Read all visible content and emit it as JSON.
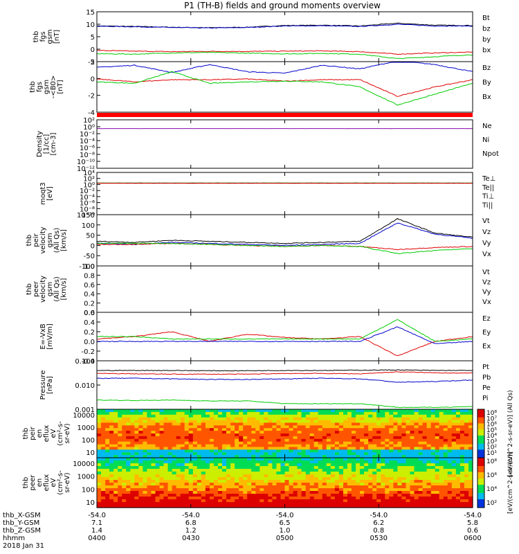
{
  "title": "P1 (TH-B) fields and ground moments overview",
  "colors": {
    "black": "#000000",
    "red": "#e00000",
    "green": "#00cc00",
    "blue": "#0000cc",
    "purple": "#8800aa"
  },
  "chart_data": [
    {
      "type": "line",
      "ylabel": "thb\nfgs\ngsm\n[nT]",
      "ylim": [
        -5,
        15
      ],
      "yticks": [
        "15",
        "10",
        "5",
        "0",
        "-5"
      ],
      "legend": [
        {
          "name": "Bt",
          "color": "#000000"
        },
        {
          "name": "bz",
          "color": "#e00000"
        },
        {
          "name": "by",
          "color": "#00cc00"
        },
        {
          "name": "bx",
          "color": "#0000cc"
        }
      ],
      "series": [
        {
          "name": "Bt",
          "color": "#000000",
          "values": [
            9.3,
            9.1,
            8.8,
            8.6,
            8.8,
            9.5,
            9.6,
            9.3,
            10.4,
            9.6,
            9.5
          ]
        },
        {
          "name": "bz",
          "color": "#0000cc",
          "values": [
            9.2,
            9.0,
            8.7,
            8.5,
            8.7,
            9.3,
            9.4,
            9.1,
            10.0,
            9.3,
            9.3
          ]
        },
        {
          "name": "by",
          "color": "#e00000",
          "values": [
            -0.5,
            -0.8,
            -1.0,
            -0.9,
            -0.9,
            -0.8,
            -0.7,
            -1.0,
            -2.0,
            -1.5,
            -1.2
          ]
        },
        {
          "name": "bx",
          "color": "#00cc00",
          "values": [
            -1.8,
            -2.0,
            -1.5,
            -1.3,
            -1.6,
            -1.9,
            -1.7,
            -2.0,
            -3.8,
            -3.0,
            -2.2
          ]
        }
      ]
    },
    {
      "type": "line",
      "ylabel": "thb\nfgs\ngsm\n-<B0>\n[nT]",
      "ylim": [
        -5,
        2
      ],
      "yticks": [
        "2",
        "0",
        "-2",
        "-4"
      ],
      "legend": [
        {
          "name": "Bz",
          "color": "#e00000"
        },
        {
          "name": "By",
          "color": "#00cc00"
        },
        {
          "name": "Bx",
          "color": "#0000cc"
        }
      ],
      "series": [
        {
          "name": "Bz",
          "color": "#0000cc",
          "values": [
            1.2,
            1.5,
            0.5,
            1.6,
            0.6,
            0.4,
            1.5,
            1.0,
            2.1,
            1.6,
            0.6
          ]
        },
        {
          "name": "By",
          "color": "#e00000",
          "values": [
            -0.4,
            -0.8,
            -0.5,
            -0.5,
            -0.4,
            -0.7,
            -0.5,
            -0.5,
            -2.8,
            -1.5,
            -0.5
          ]
        },
        {
          "name": "Bx",
          "color": "#00cc00",
          "values": [
            -0.8,
            -1.0,
            0.6,
            -1.0,
            -0.8,
            -0.7,
            -0.8,
            -1.5,
            -4.0,
            -2.5,
            -1.0
          ]
        }
      ]
    },
    {
      "type": "line",
      "ylabel": "Density\n[1/cc]\n[cm-3]",
      "ylim": [
        -12,
        2
      ],
      "log": true,
      "yticks": [
        "10²",
        "10⁰",
        "10⁻²",
        "10⁻⁴",
        "10⁻⁶",
        "10⁻⁸",
        "10⁻¹⁰",
        "10⁻¹²"
      ],
      "legend": [
        {
          "name": "Ne",
          "color": "#e00000"
        },
        {
          "name": "Ni",
          "color": "#000000"
        },
        {
          "name": "Npot",
          "color": "#0000cc"
        }
      ],
      "series": [
        {
          "name": "Ne",
          "color": "#8800aa",
          "values": [
            0.3,
            0.3,
            0.3,
            0.3,
            0.3,
            0.3,
            0.3,
            0.3,
            0.3,
            0.3,
            0.3
          ]
        }
      ]
    },
    {
      "type": "line",
      "ylabel": "moqt3\n[eV]",
      "ylim": [
        -10,
        4
      ],
      "log": true,
      "yticks": [
        "10⁴",
        "10²",
        "10⁰",
        "10⁻²",
        "10⁻⁴",
        "10⁻⁶",
        "10⁻⁸",
        "10⁻¹⁰"
      ],
      "legend": [
        {
          "name": "Te⊥",
          "color": "#e00000"
        },
        {
          "name": "Te||",
          "color": "#000000"
        },
        {
          "name": "Ti⊥",
          "color": "#0000cc"
        },
        {
          "name": "Ti||",
          "color": "#00cc00"
        }
      ],
      "series": [
        {
          "name": "Ti||",
          "color": "#00cc00",
          "values": [
            3.3,
            3.3,
            3.3,
            3.3,
            3.3,
            3.3,
            3.3,
            3.3,
            3.3,
            3.3,
            3.3
          ]
        },
        {
          "name": "Te||",
          "color": "#000000",
          "values": [
            2.8,
            2.8,
            2.8,
            2.8,
            2.8,
            2.8,
            2.8,
            2.8,
            2.8,
            2.8,
            2.8
          ]
        },
        {
          "name": "Te⊥",
          "color": "#e00000",
          "values": [
            2.6,
            2.6,
            2.6,
            2.6,
            2.6,
            2.6,
            2.6,
            2.6,
            2.6,
            2.6,
            2.6
          ]
        }
      ]
    },
    {
      "type": "line",
      "ylabel": "thb\npeir\nvelocity\ngsm\n(All Qs)\n[km/s]",
      "ylim": [
        -100,
        150
      ],
      "yticks": [
        "150",
        "100",
        "50",
        "0",
        "-50",
        "-100"
      ],
      "legend": [
        {
          "name": "Vt",
          "color": "#000000"
        },
        {
          "name": "Vz",
          "color": "#e00000"
        },
        {
          "name": "Vy",
          "color": "#00cc00"
        },
        {
          "name": "Vx",
          "color": "#0000cc"
        }
      ],
      "series": [
        {
          "name": "Vt",
          "color": "#000000",
          "values": [
            20,
            15,
            25,
            20,
            15,
            10,
            15,
            20,
            130,
            60,
            40
          ]
        },
        {
          "name": "Vx",
          "color": "#0000cc",
          "values": [
            10,
            5,
            15,
            10,
            5,
            0,
            5,
            10,
            110,
            55,
            35
          ]
        },
        {
          "name": "Vz",
          "color": "#e00000",
          "values": [
            5,
            5,
            10,
            5,
            0,
            -5,
            0,
            -5,
            -20,
            -10,
            -5
          ]
        },
        {
          "name": "Vy",
          "color": "#00cc00",
          "values": [
            10,
            10,
            10,
            5,
            0,
            -5,
            0,
            -5,
            -40,
            -25,
            -15
          ]
        }
      ]
    },
    {
      "type": "line",
      "ylabel": "thb\npeer\nvelocity\ngsm\n(All Qs)\n[km/s]",
      "ylim": [
        0,
        1
      ],
      "yticks": [
        "1.0",
        "0.8",
        "0.6",
        "0.4",
        "0.2",
        "0.0"
      ],
      "legend": [
        {
          "name": "Vt",
          "color": "#000000"
        },
        {
          "name": "Vz",
          "color": "#e00000"
        },
        {
          "name": "Vy",
          "color": "#00cc00"
        },
        {
          "name": "Vx",
          "color": "#0000cc"
        }
      ],
      "series": []
    },
    {
      "type": "line",
      "ylabel": "E=-VxB\n[mV/m]",
      "ylim": [
        -0.4,
        0.6
      ],
      "yticks": [
        "0.6",
        "0.4",
        "0.2",
        "0.0",
        "-0.2",
        "-0.4"
      ],
      "legend": [
        {
          "name": "Ez",
          "color": "#e00000"
        },
        {
          "name": "Ey",
          "color": "#00cc00"
        },
        {
          "name": "Ex",
          "color": "#0000cc"
        }
      ],
      "series": [
        {
          "name": "Ez",
          "color": "#e00000",
          "values": [
            0.05,
            0.1,
            0.2,
            0.0,
            0.15,
            0.08,
            0.05,
            0.1,
            -0.3,
            0.0,
            0.1
          ]
        },
        {
          "name": "Ey",
          "color": "#00cc00",
          "values": [
            0.1,
            0.1,
            0.05,
            0.05,
            0.05,
            0.05,
            0.05,
            0.05,
            0.45,
            0.0,
            0.05
          ]
        },
        {
          "name": "Ex",
          "color": "#0000cc",
          "values": [
            0.0,
            0.0,
            0.0,
            0.0,
            0.0,
            0.0,
            0.0,
            0.0,
            0.3,
            -0.05,
            0.0
          ]
        }
      ]
    },
    {
      "type": "line",
      "ylabel": "Pressure\n[nPa]",
      "ylim": [
        -3,
        -1
      ],
      "log": true,
      "yticks": [
        "0.100",
        "0.010",
        "0.001"
      ],
      "legend": [
        {
          "name": "Pt",
          "color": "#000000"
        },
        {
          "name": "Pb",
          "color": "#e00000"
        },
        {
          "name": "Pe",
          "color": "#00cc00"
        },
        {
          "name": "Pi",
          "color": "#0000cc"
        }
      ],
      "series": [
        {
          "name": "Pt",
          "color": "#000000",
          "values": [
            0.04,
            0.04,
            0.04,
            0.039,
            0.039,
            0.04,
            0.04,
            0.041,
            0.042,
            0.04,
            0.04
          ]
        },
        {
          "name": "Pb",
          "color": "#e00000",
          "values": [
            0.03,
            0.029,
            0.028,
            0.028,
            0.028,
            0.03,
            0.03,
            0.029,
            0.035,
            0.032,
            0.031
          ]
        },
        {
          "name": "Pi",
          "color": "#0000cc",
          "values": [
            0.019,
            0.019,
            0.018,
            0.017,
            0.017,
            0.018,
            0.019,
            0.018,
            0.013,
            0.014,
            0.016
          ]
        },
        {
          "name": "Pe",
          "color": "#00cc00",
          "values": [
            0.0024,
            0.0023,
            0.0024,
            0.0022,
            0.0022,
            0.0017,
            0.0017,
            0.0017,
            0.0012,
            0.0012,
            0.0013
          ]
        }
      ]
    },
    {
      "type": "heatmap",
      "ylabel": "thb\npeir\nen\neflux\neV\n(cm²-s-\nsr-eV)",
      "yticks": [
        "10000",
        "1000",
        "100",
        "10"
      ],
      "colorbar_label": "[eV/(cm^2-s-sr-eV)] (All Qs)",
      "colorbar_ticks": [
        "10⁸",
        "10⁷",
        "10⁶",
        "10⁵",
        "10⁴",
        "10³",
        "10²",
        "10¹"
      ]
    },
    {
      "type": "heatmap",
      "ylabel": "thb\npeer\nen\neflux\neV\n(cm²-s-\nsr-eV)",
      "yticks": [
        "10000",
        "1000",
        "100",
        "10"
      ],
      "colorbar_label": "[eV/(cm^2-s-sr-eV)]",
      "colorbar_ticks": [
        "10⁸",
        "10⁶",
        "10⁴",
        "10²"
      ]
    }
  ],
  "footer": {
    "row_labels": [
      "thb_X-GSM",
      "thb_Y-GSM",
      "thb_Z-GSM",
      "hhmm"
    ],
    "date": "2018 Jan 31",
    "columns": [
      {
        "values": [
          "-54.0",
          "7.1",
          "1.4",
          "0400"
        ]
      },
      {
        "values": [
          "-54.0",
          "6.8",
          "1.2",
          "0430"
        ]
      },
      {
        "values": [
          "-54.0",
          "6.5",
          "1.0",
          "0500"
        ]
      },
      {
        "values": [
          "-54.0",
          "6.2",
          "0.8",
          "0530"
        ]
      },
      {
        "values": [
          "-54.0",
          "5.8",
          "0.6",
          "0600"
        ]
      }
    ]
  }
}
